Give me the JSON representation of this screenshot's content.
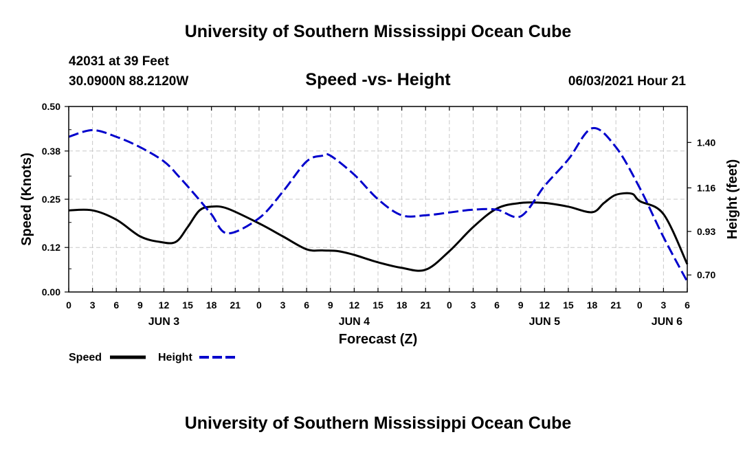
{
  "header": {
    "title": "University of Southern Mississippi Ocean Cube",
    "station": "42031 at 39 Feet",
    "position": "30.0900N  88.2120W",
    "datetime": "06/03/2021 Hour 21",
    "footer": "University of Southern Mississippi Ocean Cube"
  },
  "chart_data": {
    "type": "line",
    "title": "Speed -vs- Height",
    "xlabel": "Forecast (Z)",
    "ylabel_left": "Speed (Knots)",
    "ylabel_right": "Height (feet)",
    "x_hours": [
      0,
      3,
      6,
      9,
      12,
      15,
      18,
      21,
      24,
      27,
      30,
      33,
      36,
      39,
      42,
      45,
      48,
      51,
      54,
      57,
      60,
      63,
      66,
      69,
      72,
      75,
      78
    ],
    "x_tick_labels": [
      "0",
      "3",
      "6",
      "9",
      "12",
      "15",
      "18",
      "21",
      "0",
      "3",
      "6",
      "9",
      "12",
      "15",
      "18",
      "21",
      "0",
      "3",
      "6",
      "9",
      "12",
      "15",
      "18",
      "21",
      "0",
      "3",
      "6"
    ],
    "day_labels": [
      {
        "label": "JUN 3",
        "hour": 12
      },
      {
        "label": "JUN 4",
        "hour": 36
      },
      {
        "label": "JUN 5",
        "hour": 60
      },
      {
        "label": "JUN 6",
        "hour": 75
      }
    ],
    "y_left": {
      "range": [
        0,
        0.5
      ],
      "ticks": [
        "0.00",
        "0.12",
        "0.25",
        "0.38",
        "0.50"
      ]
    },
    "y_right": {
      "range": [
        0.61,
        1.59
      ],
      "ticks": [
        "0.70",
        "0.93",
        "1.16",
        "1.40"
      ]
    },
    "series": [
      {
        "name": "Speed",
        "color": "#000000",
        "axis": "left",
        "hours": [
          0,
          3,
          6,
          9,
          11.5,
          13.5,
          15,
          16.5,
          18,
          20,
          24,
          27,
          30,
          32,
          34,
          36,
          39,
          42,
          45,
          48,
          51,
          54,
          57,
          60,
          63,
          66,
          67.5,
          69,
          71,
          72,
          75,
          78
        ],
        "values": [
          0.22,
          0.22,
          0.195,
          0.15,
          0.135,
          0.135,
          0.175,
          0.22,
          0.23,
          0.225,
          0.185,
          0.15,
          0.115,
          0.112,
          0.11,
          0.1,
          0.08,
          0.065,
          0.06,
          0.11,
          0.175,
          0.225,
          0.24,
          0.24,
          0.23,
          0.215,
          0.24,
          0.262,
          0.265,
          0.245,
          0.21,
          0.075
        ]
      },
      {
        "name": "Height",
        "color": "#0000cc",
        "axis": "right",
        "hours": [
          0,
          3,
          6,
          9,
          12,
          14,
          16,
          18,
          20,
          24,
          27,
          30,
          32,
          33,
          36,
          39,
          42,
          45,
          48,
          51,
          54,
          57,
          60,
          63,
          66,
          69,
          72,
          75,
          78
        ],
        "values": [
          1.43,
          1.465,
          1.43,
          1.375,
          1.3,
          1.215,
          1.12,
          1.02,
          0.92,
          1.0,
          1.14,
          1.3,
          1.33,
          1.33,
          1.23,
          1.1,
          1.015,
          1.015,
          1.03,
          1.045,
          1.045,
          1.01,
          1.17,
          1.31,
          1.475,
          1.375,
          1.16,
          0.9,
          0.665
        ]
      }
    ],
    "legend": [
      {
        "label": "Speed",
        "color": "#000000",
        "style": "solid"
      },
      {
        "label": "Height",
        "color": "#0000cc",
        "style": "dashed"
      }
    ],
    "grid": true
  }
}
